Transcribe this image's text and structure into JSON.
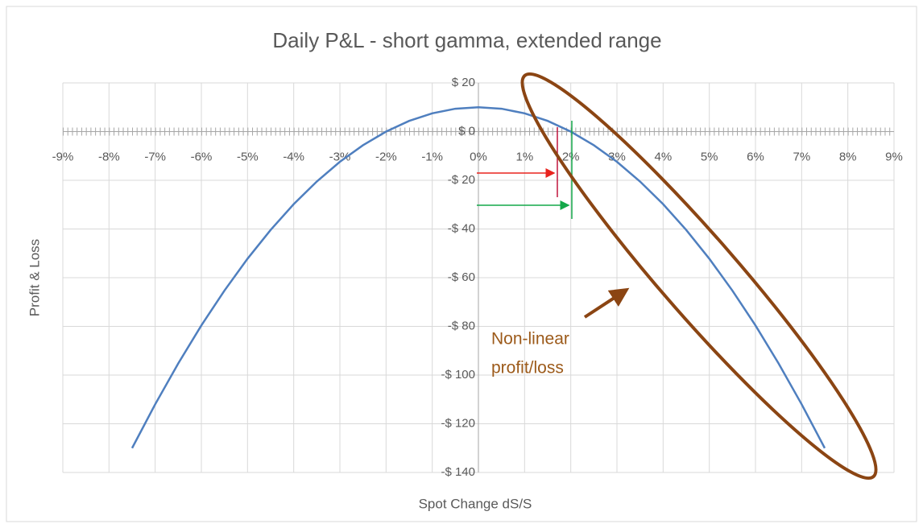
{
  "chart_data": {
    "type": "line",
    "title": "Daily P&L  - short gamma, extended range",
    "x_label": "Spot Change dS/S",
    "y_label": "Profit & Loss",
    "annotation": [
      "Non-linear",
      "profit/loss"
    ],
    "x": [
      -7.5,
      -7,
      -6.5,
      -6,
      -5.5,
      -5,
      -4.5,
      -4,
      -3.5,
      -3,
      -2.5,
      -2,
      -1.5,
      -1,
      -0.5,
      0,
      0.5,
      1,
      1.5,
      2,
      2.5,
      3,
      3.5,
      4,
      4.5,
      5,
      5.5,
      6,
      6.5,
      7,
      7.5
    ],
    "series": [
      {
        "name": "P&L",
        "color": "#4f7fbf",
        "values": [
          -130,
          -112.0,
          -95.2,
          -79.6,
          -65.3,
          -52.2,
          -40.4,
          -29.8,
          -20.5,
          -12.4,
          -5.6,
          0.0,
          4.4,
          7.5,
          9.4,
          10,
          9.4,
          7.5,
          4.4,
          0.0,
          -5.6,
          -12.4,
          -20.5,
          -29.8,
          -40.4,
          -52.2,
          -65.3,
          -79.6,
          -95.2,
          -112.0,
          -130
        ]
      }
    ],
    "xlim": [
      -9,
      9
    ],
    "xticks": [
      {
        "value": -9,
        "label": "-9%"
      },
      {
        "value": -8,
        "label": "-8%"
      },
      {
        "value": -7,
        "label": "-7%"
      },
      {
        "value": -6,
        "label": "-6%"
      },
      {
        "value": -5,
        "label": "-5%"
      },
      {
        "value": -4,
        "label": "-4%"
      },
      {
        "value": -3,
        "label": "-3%"
      },
      {
        "value": -2,
        "label": "-2%"
      },
      {
        "value": -1,
        "label": "-1%"
      },
      {
        "value": 0,
        "label": "0%"
      },
      {
        "value": 1,
        "label": "1%"
      },
      {
        "value": 2,
        "label": "2%"
      },
      {
        "value": 3,
        "label": "3%"
      },
      {
        "value": 4,
        "label": "4%"
      },
      {
        "value": 5,
        "label": "5%"
      },
      {
        "value": 6,
        "label": "6%"
      },
      {
        "value": 7,
        "label": "7%"
      },
      {
        "value": 8,
        "label": "8%"
      },
      {
        "value": 9,
        "label": "9%"
      }
    ],
    "ylim": [
      -140,
      20
    ],
    "yticks": [
      {
        "value": 20,
        "label": "$ 20"
      },
      {
        "value": 0,
        "label": "$ 0"
      },
      {
        "value": -20,
        "label": "-$ 20"
      },
      {
        "value": -40,
        "label": "-$ 40"
      },
      {
        "value": -60,
        "label": "-$ 60"
      },
      {
        "value": -80,
        "label": "-$ 80"
      },
      {
        "value": -100,
        "label": "-$ 100"
      },
      {
        "value": -120,
        "label": "-$ 120"
      },
      {
        "value": -140,
        "label": "-$ 140"
      }
    ],
    "grid": true
  }
}
